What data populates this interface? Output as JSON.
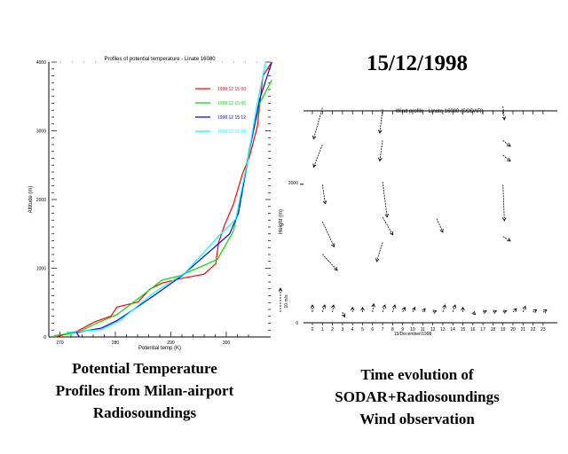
{
  "slide": {
    "date_title": "15/12/1998",
    "left_caption": [
      "Potential Temperature",
      "Profiles from Milan-airport",
      "Radiosoundings"
    ],
    "right_caption": [
      "Time evolution of",
      "SODAR+Radiosoundings",
      "Wind observation"
    ]
  },
  "chart_data": [
    {
      "type": "line",
      "title": "Profiles of potential temperature - Linate 16080",
      "xlabel": "Potential temp (K)",
      "ylabel": "Altitude (m)",
      "xlim": [
        268,
        308
      ],
      "ylim": [
        0,
        4000
      ],
      "xticks": [
        270,
        280,
        290,
        300
      ],
      "yticks": [
        0,
        1000,
        2000,
        3000,
        4000
      ],
      "legend_position": "top-right",
      "series": [
        {
          "name": "1998 12 15 00",
          "color": "#ff0000",
          "x": [
            269.2,
            273.2,
            276.2,
            279.2,
            280.3,
            284.1,
            286.2,
            288.4,
            291.6,
            296.0,
            298.1,
            298.6,
            299.7,
            301.3,
            302.9,
            304.2,
            305.6,
            306.6,
            308.2
          ],
          "y": [
            0,
            87,
            217,
            304,
            435,
            509,
            696,
            783,
            848,
            913,
            1065,
            1370,
            1630,
            1935,
            2370,
            2630,
            3065,
            3800,
            4000
          ]
        },
        {
          "name": "1998 12 15 06",
          "color": "#00dd00",
          "x": [
            268.9,
            273.2,
            276.5,
            280.3,
            284.6,
            288.4,
            291.6,
            295.4,
            298.4,
            301.3,
            302.9,
            304.2,
            306.1,
            308.2
          ],
          "y": [
            20,
            65,
            195,
            326,
            587,
            826,
            891,
            1022,
            1130,
            1544,
            2152,
            2761,
            3413,
            3739
          ]
        },
        {
          "name": "1998 12 15 12",
          "color": "#0000ff",
          "x": [
            273.5,
            273.0,
            277.5,
            280.3,
            286.7,
            292.0,
            300.6,
            302.2,
            304.1,
            306.0,
            308.2
          ],
          "y": [
            0,
            65,
            130,
            239,
            587,
            891,
            1500,
            1804,
            2674,
            3457,
            4000
          ]
        },
        {
          "name": "1998 12 15 18",
          "color": "#00ffff",
          "x": [
            271.1,
            277.5,
            280.8,
            286.7,
            292.6,
            298.5,
            301.7,
            303.9,
            305.5,
            307.1
          ],
          "y": [
            65,
            109,
            239,
            630,
            935,
            1457,
            1717,
            2587,
            3370,
            4000
          ]
        }
      ]
    },
    {
      "type": "vector",
      "title": "Wind profile - Linate 16080 (SODAR)",
      "xlabel": "15/December/1998",
      "ylabel": "Height (m)",
      "xlim": [
        0,
        24
      ],
      "ylim": [
        0,
        3000
      ],
      "xticks": [
        0,
        1,
        2,
        3,
        4,
        5,
        6,
        7,
        8,
        9,
        10,
        11,
        12,
        13,
        14,
        15,
        16,
        17,
        18,
        19,
        20,
        21,
        22,
        23
      ],
      "ytick_labels": [
        "0",
        "2000"
      ],
      "reference_arrow": "10 m/s",
      "vectors": [
        {
          "hour": 1,
          "height": 3068,
          "u": -3.7,
          "v": -13
        },
        {
          "hour": 1,
          "height": 2540,
          "u": -3.7,
          "v": -9.3
        },
        {
          "hour": 1,
          "height": 1970,
          "u": 1.2,
          "v": -8
        },
        {
          "hour": 1,
          "height": 1443,
          "u": 4.9,
          "v": -10.5
        },
        {
          "hour": 1,
          "height": 979,
          "u": 6.2,
          "v": -6.8
        },
        {
          "hour": 7,
          "height": 3047,
          "u": -1.2,
          "v": -9.9
        },
        {
          "hour": 7,
          "height": 2604,
          "u": -1.2,
          "v": -8.6
        },
        {
          "hour": 7,
          "height": 2013,
          "u": 1.9,
          "v": -14.8
        },
        {
          "hour": 7,
          "height": 1507,
          "u": 4.3,
          "v": -7.4
        },
        {
          "hour": 7,
          "height": 1148,
          "u": -2.5,
          "v": -8
        },
        {
          "hour": 12.4,
          "height": 1485,
          "u": 2.5,
          "v": -5.6
        },
        {
          "hour": 19,
          "height": 3089,
          "u": 0.6,
          "v": -5.6
        },
        {
          "hour": 19,
          "height": 2604,
          "u": 3.1,
          "v": -2.5
        },
        {
          "hour": 19,
          "height": 2393,
          "u": 3.1,
          "v": -2.5
        },
        {
          "hour": 19,
          "height": 1970,
          "u": 0.6,
          "v": -15
        },
        {
          "hour": 19,
          "height": 1232,
          "u": 3.1,
          "v": -1.9
        }
      ],
      "sodar_vectors": [
        {
          "hour": 0,
          "u": 0,
          "v": 3
        },
        {
          "hour": 1,
          "u": 1,
          "v": 3
        },
        {
          "hour": 2,
          "u": 0.5,
          "v": 3
        },
        {
          "hour": 3,
          "u": 1,
          "v": -2
        },
        {
          "hour": 4,
          "u": 0,
          "v": 2
        },
        {
          "hour": 5,
          "u": 0,
          "v": 2
        },
        {
          "hour": 6,
          "u": 0.5,
          "v": 3.5
        },
        {
          "hour": 7,
          "u": 1,
          "v": 3
        },
        {
          "hour": 8,
          "u": 1,
          "v": 3
        },
        {
          "hour": 9,
          "u": 1,
          "v": 2
        },
        {
          "hour": 10,
          "u": 1,
          "v": 2
        },
        {
          "hour": 11,
          "u": 1,
          "v": 1.5
        },
        {
          "hour": 12,
          "u": 1.5,
          "v": 0.5
        },
        {
          "hour": 13,
          "u": 1,
          "v": 3
        },
        {
          "hour": 14,
          "u": 1,
          "v": 3
        },
        {
          "hour": 15,
          "u": 0,
          "v": 2
        },
        {
          "hour": 16,
          "u": 1,
          "v": -1
        },
        {
          "hour": 17,
          "u": 1.5,
          "v": 0.5
        },
        {
          "hour": 18,
          "u": 1.5,
          "v": 0.5
        },
        {
          "hour": 19,
          "u": 1.5,
          "v": 0.5
        },
        {
          "hour": 20,
          "u": 1.5,
          "v": 1.5
        },
        {
          "hour": 21,
          "u": 1,
          "v": 2.5
        },
        {
          "hour": 22,
          "u": 1.5,
          "v": 1
        },
        {
          "hour": 23,
          "u": 1.5,
          "v": 1
        }
      ]
    }
  ]
}
